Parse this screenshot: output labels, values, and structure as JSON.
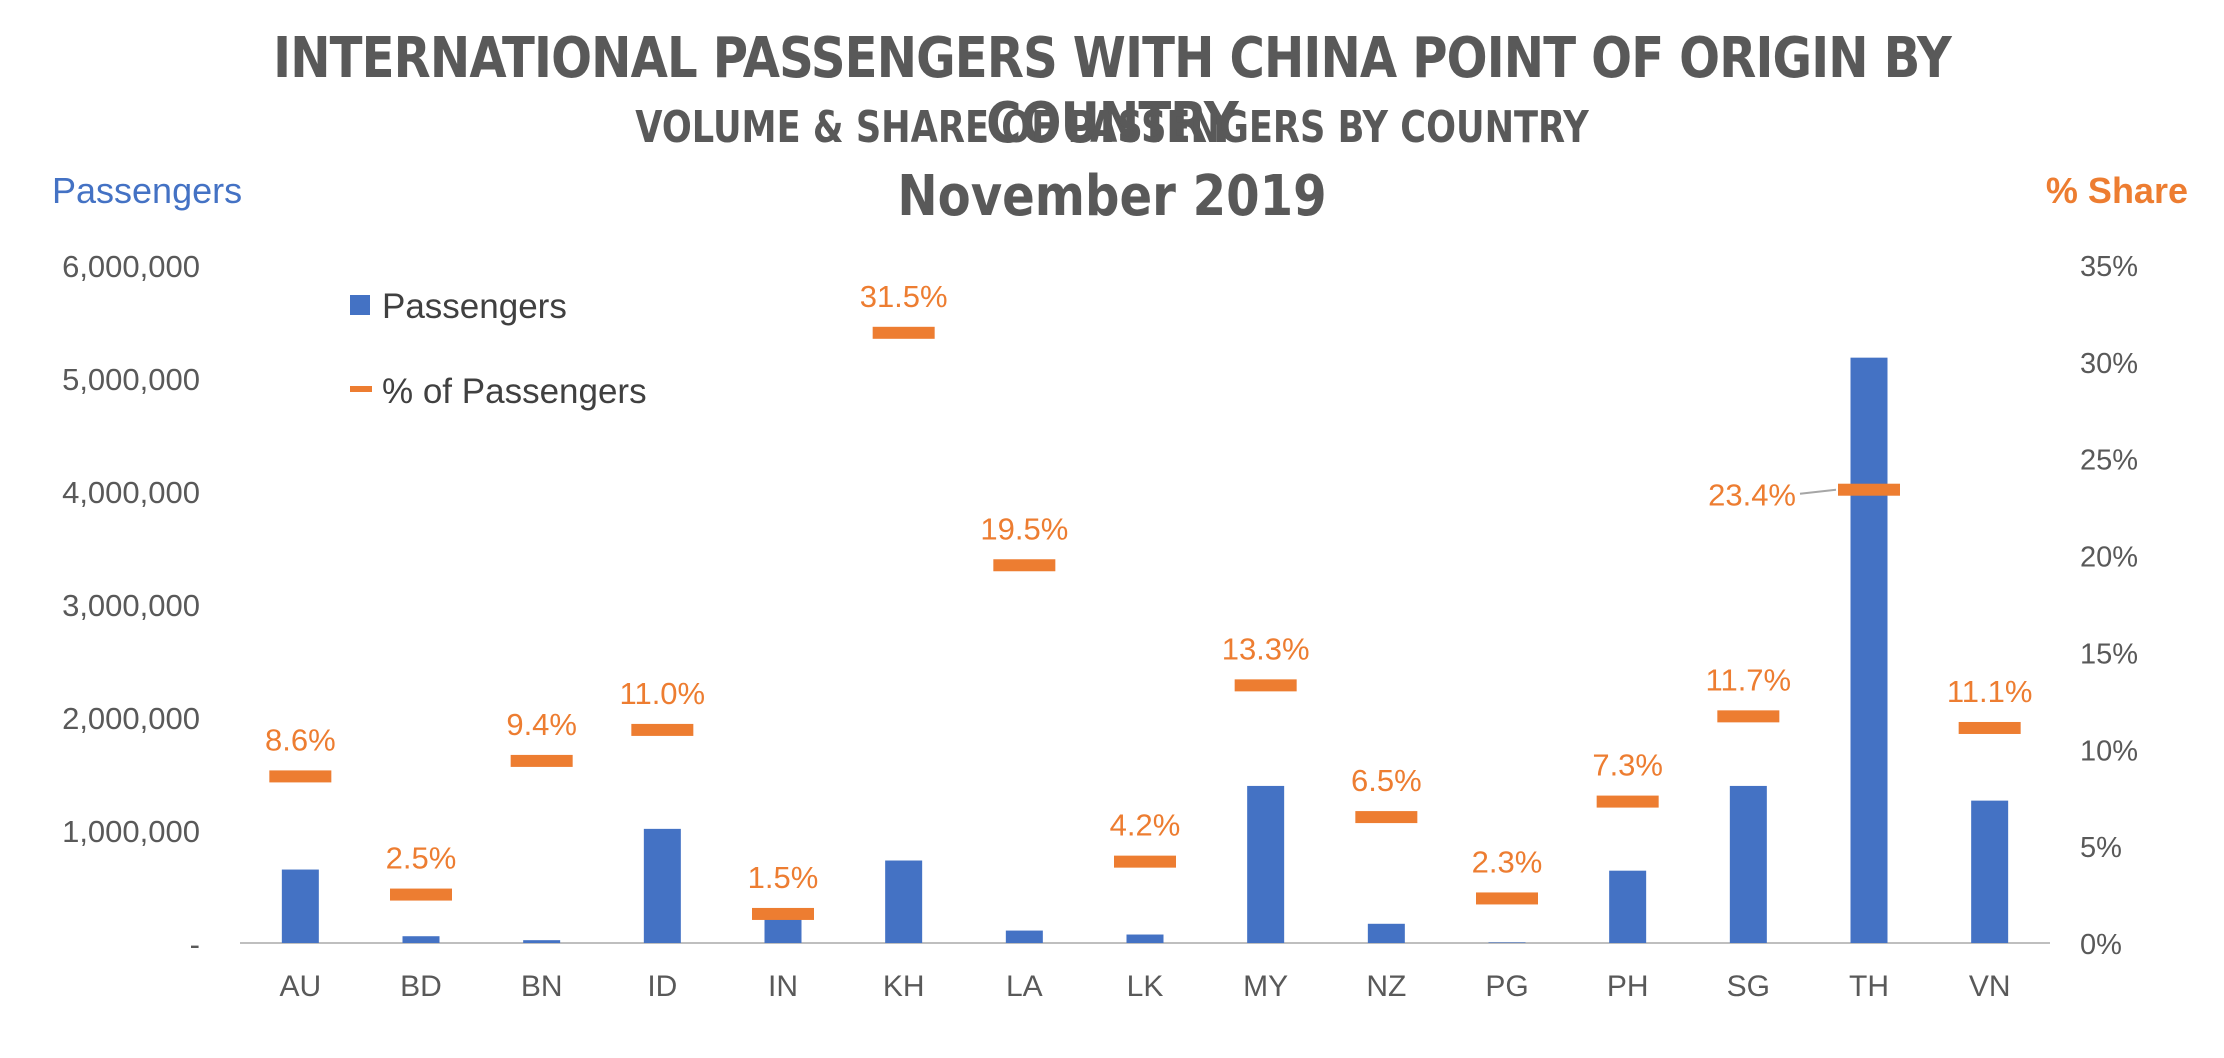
{
  "chart_data": {
    "type": "bar",
    "title": "INTERNATIONAL PASSENGERS WITH CHINA POINT OF ORIGIN BY COUNTRY",
    "subtitle": "VOLUME & SHARE OF PASSENGERS BY COUNTRY",
    "period": "November 2019",
    "ylabel": "Passengers",
    "y2label": "% Share",
    "ylim": [
      0,
      6000000
    ],
    "y2lim": [
      0,
      35
    ],
    "y_ticks": [
      "-",
      "1,000,000",
      "2,000,000",
      "3,000,000",
      "4,000,000",
      "5,000,000",
      "6,000,000"
    ],
    "y2_ticks": [
      "0%",
      "5%",
      "10%",
      "15%",
      "20%",
      "25%",
      "30%",
      "35%"
    ],
    "grid": false,
    "legend_position": "top-left",
    "categories": [
      "AU",
      "BD",
      "BN",
      "ID",
      "IN",
      "KH",
      "LA",
      "LK",
      "MY",
      "NZ",
      "PG",
      "PH",
      "SG",
      "TH",
      "VN"
    ],
    "series": [
      {
        "name": "Passengers",
        "kind": "bar",
        "axis": "left",
        "color": "#4472C4",
        "values": [
          650000,
          60000,
          25000,
          1010000,
          270000,
          730000,
          110000,
          75000,
          1390000,
          170000,
          5000,
          640000,
          1390000,
          5180000,
          1260000
        ]
      },
      {
        "name": "% of Passengers",
        "kind": "marker",
        "axis": "right",
        "color": "#ED7D31",
        "values": [
          8.6,
          2.5,
          9.4,
          11.0,
          1.5,
          31.5,
          19.5,
          4.2,
          13.3,
          6.5,
          2.3,
          7.3,
          11.7,
          23.4,
          11.1
        ],
        "labels": [
          "8.6%",
          "2.5%",
          "9.4%",
          "11.0%",
          "1.5%",
          "31.5%",
          "19.5%",
          "4.2%",
          "13.3%",
          "6.5%",
          "2.3%",
          "7.3%",
          "11.7%",
          "23.4%",
          "11.1%"
        ]
      }
    ]
  }
}
